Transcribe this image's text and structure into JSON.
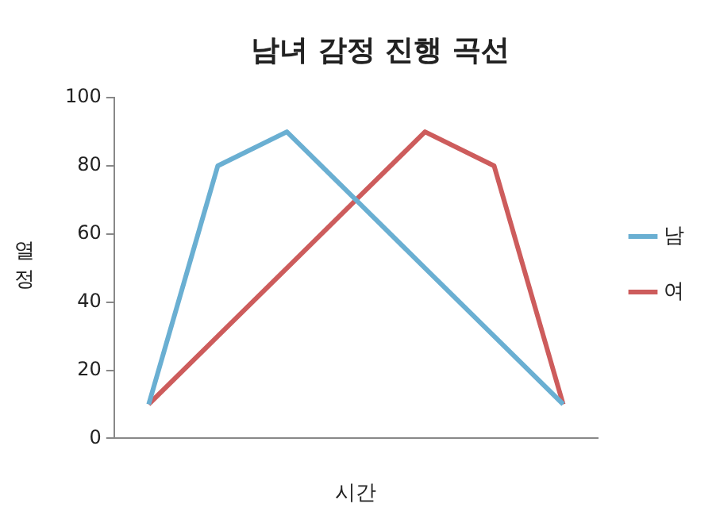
{
  "chart_data": {
    "type": "line",
    "title": "남녀 감정 진행 곡선",
    "xlabel": "시간",
    "ylabel": "열정",
    "categories": [
      null,
      null,
      null,
      null,
      null,
      null,
      null
    ],
    "series": [
      {
        "name": "남",
        "color": "#6aafd2",
        "values": [
          10,
          80,
          90,
          70,
          50,
          30,
          10
        ]
      },
      {
        "name": "여",
        "color": "#cd5c5c",
        "values": [
          10,
          30,
          50,
          70,
          90,
          80,
          10
        ]
      }
    ],
    "ylim": [
      0,
      100
    ],
    "yticks": [
      0,
      20,
      40,
      60,
      80,
      100
    ],
    "grid": false,
    "legend": "right",
    "marker": "none",
    "line_style": "solid"
  }
}
